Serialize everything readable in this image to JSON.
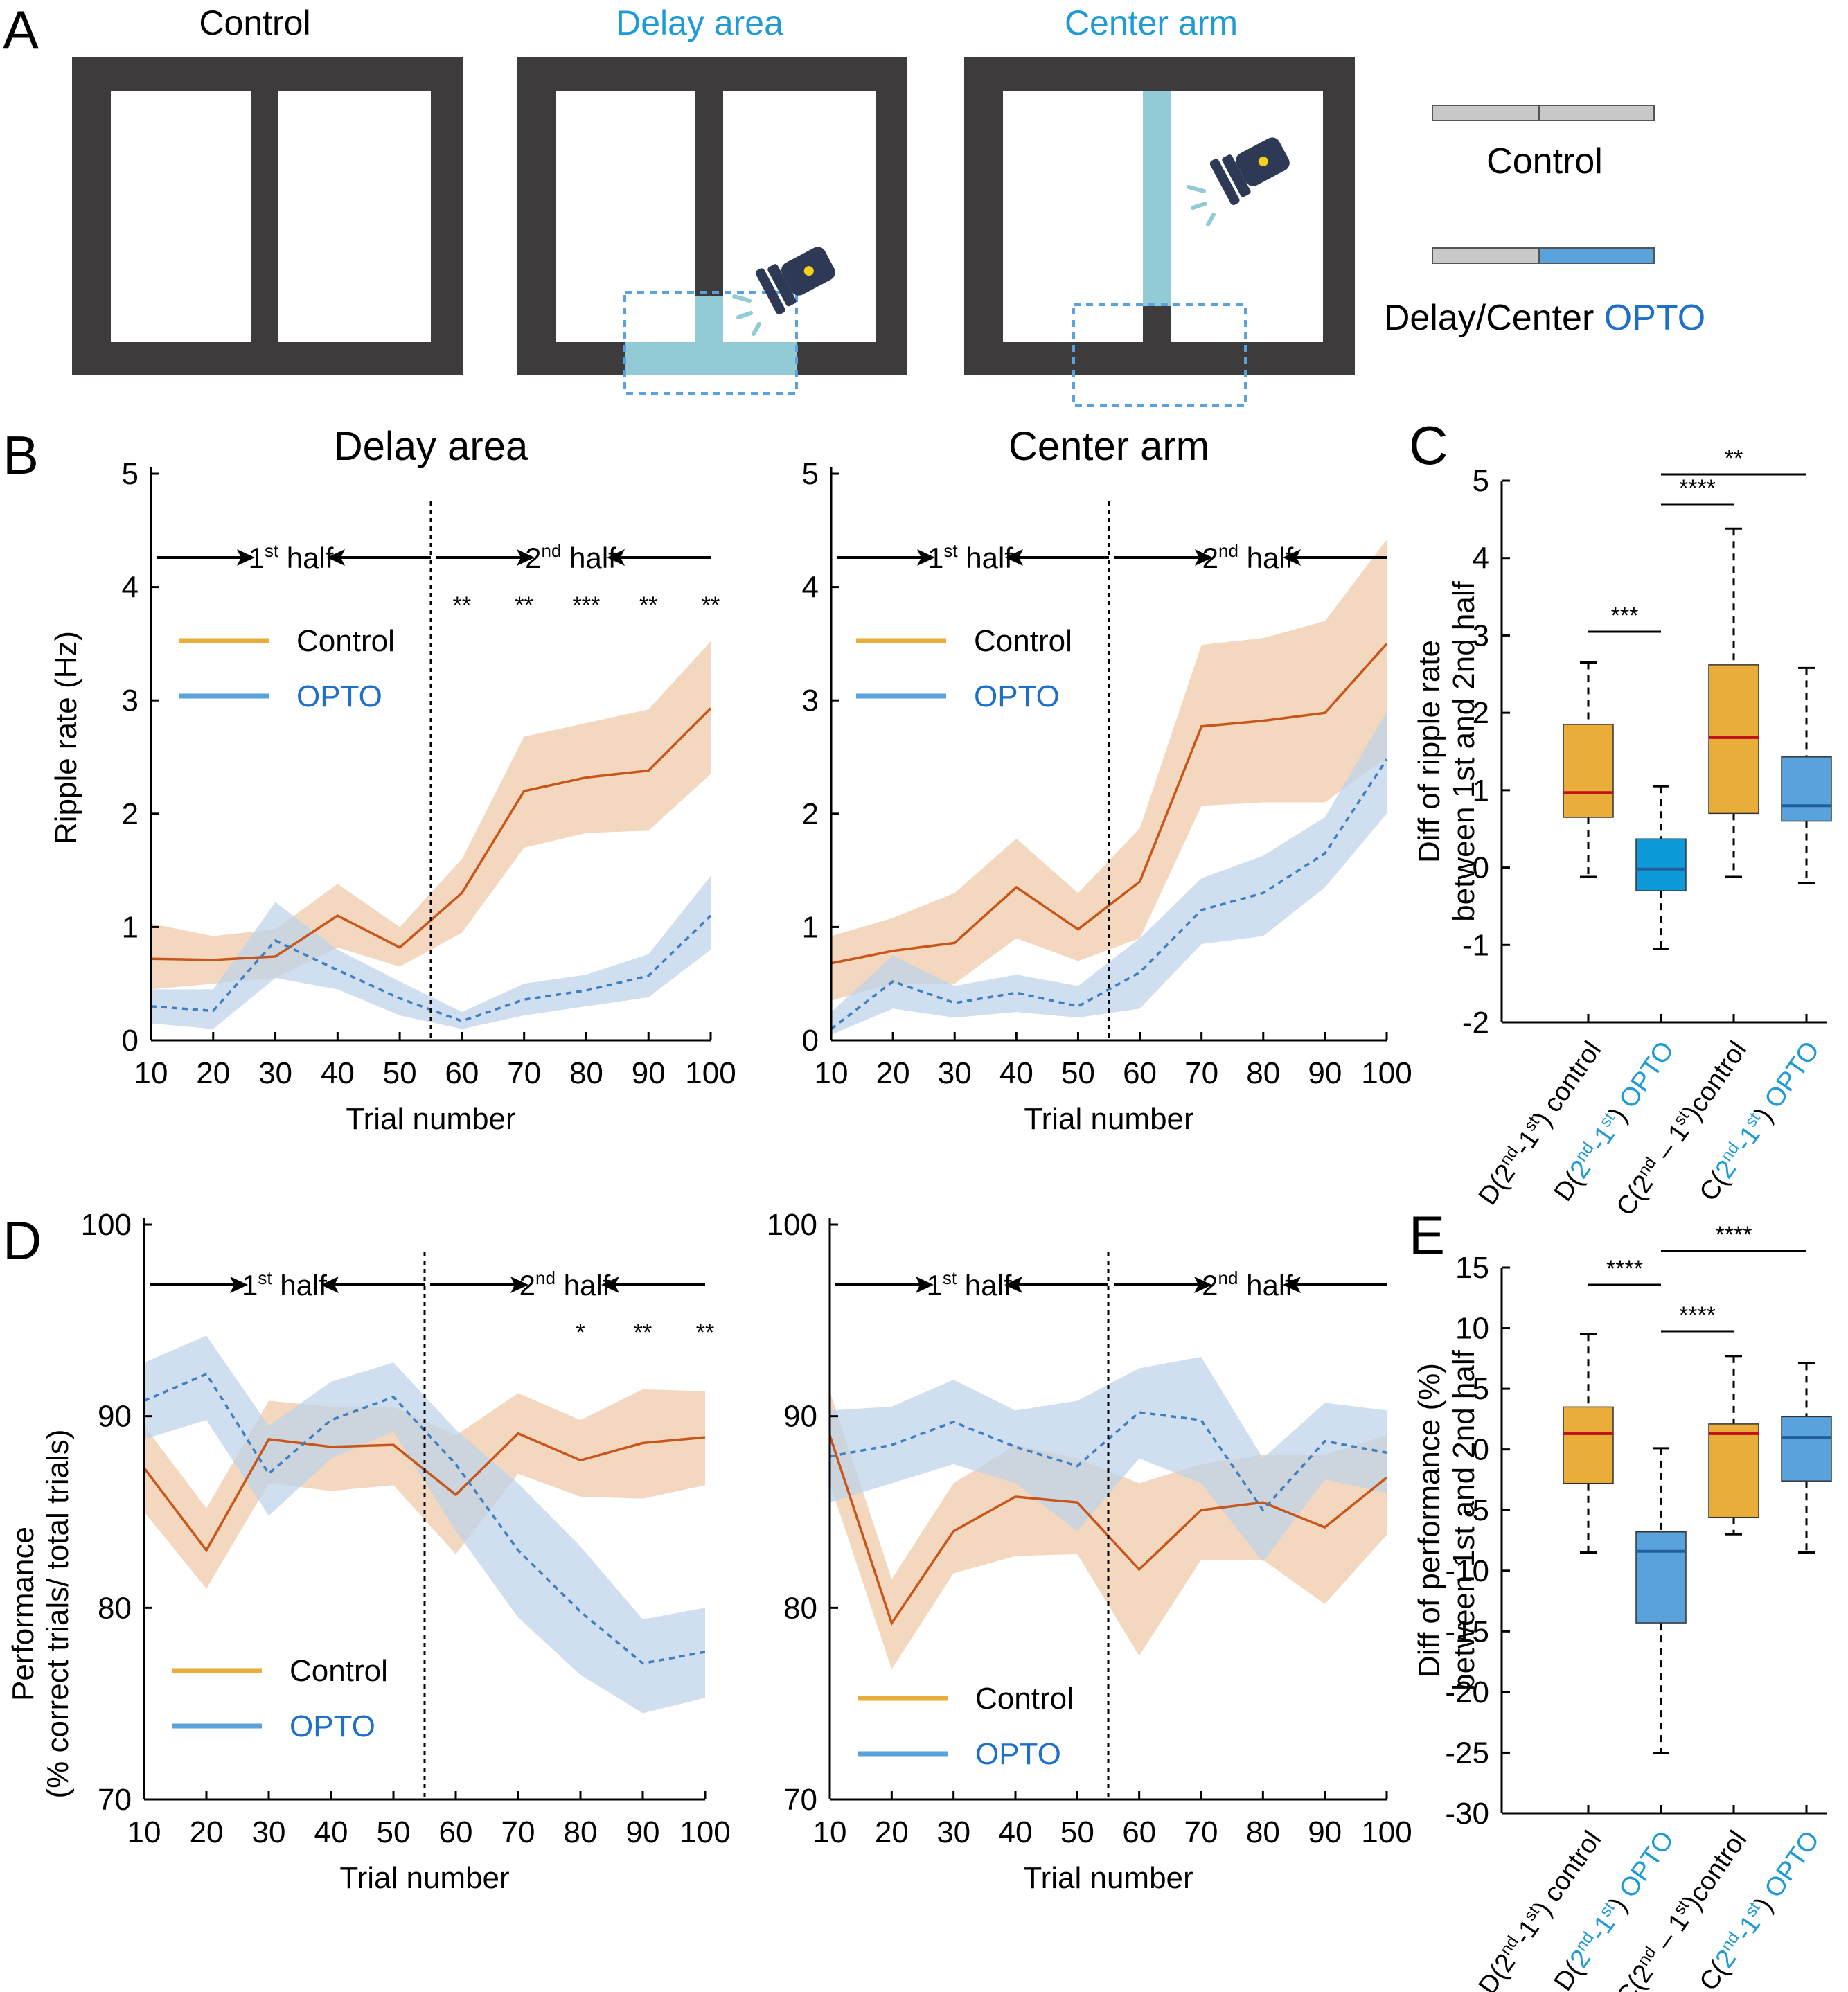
{
  "colors": {
    "control": "#c8561a",
    "control_band": "#efc9a6",
    "opto": "#3f7fc1",
    "opto_band": "#bcd3ea",
    "box_orange": "#e9ad3a",
    "box_blue_c": "#0e9ad8",
    "box_blue_e": "#5aa2dc",
    "median_red": "#c0111d",
    "text_blue": "#1e9ad6",
    "maze": "#3d3b3b",
    "light": "#92cad6"
  },
  "panelA": {
    "letter": "A",
    "titles": [
      "Control",
      "Delay area",
      "Center arm"
    ],
    "legend_control": "Control",
    "legend_opto_prefix": "Delay/Center ",
    "legend_opto_word": "OPTO"
  },
  "panelB": {
    "letter": "B",
    "ylabel": "Ripple rate  (Hz)",
    "xlabel": "Trial number",
    "first_half": "1",
    "first_sup": "st",
    "second_half": "2",
    "second_sup": "nd",
    "half_word": " half",
    "legend": [
      "Control",
      "OPTO"
    ],
    "stars": [
      "**",
      "**",
      "***",
      "**",
      "**"
    ]
  },
  "panelC": {
    "letter": "C",
    "ylabel_line1": "Diff of ripple rate",
    "ylabel_line2": "between 1st and 2nd half",
    "brackets": [
      "***",
      "****",
      "**"
    ]
  },
  "panelD": {
    "letter": "D",
    "ylabel_line1": "Performance",
    "ylabel_line2": "(% correct trials/ total trials)",
    "xlabel": "Trial number",
    "legend": [
      "Control",
      "OPTO"
    ],
    "stars": [
      "*",
      "**",
      "**"
    ]
  },
  "panelE": {
    "letter": "E",
    "ylabel_line1": "Diff of performance (%)",
    "ylabel_line2": "between 1st and 2nd half",
    "brackets": [
      "****",
      "****",
      "****"
    ]
  },
  "box_labels": [
    {
      "a": "D(2",
      "s1": "nd",
      "b": "-1",
      "s2": "st",
      "c": ") control",
      "blue": false
    },
    {
      "a": "D(",
      "s1": "nd",
      "b": "-1",
      "s2": "st",
      "c": ") ",
      "blue": true,
      "word": "OPTO",
      "num1": "2",
      "num2": "1"
    },
    {
      "a": "C(2",
      "s1": "nd",
      "b": " – 1",
      "s2": "st",
      "c": ")control",
      "blue": false
    },
    {
      "a": "C(",
      "s1": "nd",
      "b": "-1",
      "s2": "st",
      "c": ") ",
      "blue": true,
      "word": "OPTO",
      "num1": "2",
      "num2": "1"
    }
  ],
  "chart_data": [
    {
      "id": "B-delay",
      "type": "line",
      "title": "Delay area",
      "xlabel": "Trial number",
      "ylabel": "Ripple rate  (Hz)",
      "x": [
        10,
        20,
        30,
        40,
        50,
        60,
        70,
        80,
        90,
        100
      ],
      "xlim": [
        10,
        100
      ],
      "ylim": [
        0,
        5
      ],
      "yticks": [
        0,
        1,
        2,
        3,
        4,
        5
      ],
      "xticks": [
        10,
        20,
        30,
        40,
        50,
        60,
        70,
        80,
        90,
        100
      ],
      "divider_x": 55,
      "series": [
        {
          "name": "Control",
          "values": [
            0.72,
            0.71,
            0.74,
            1.1,
            0.82,
            1.3,
            2.2,
            2.32,
            2.38,
            2.93
          ],
          "lower": [
            0.45,
            0.5,
            0.55,
            0.82,
            0.65,
            0.95,
            1.7,
            1.83,
            1.85,
            2.35
          ],
          "upper": [
            1.03,
            0.92,
            0.98,
            1.38,
            1.0,
            1.6,
            2.68,
            2.8,
            2.92,
            3.52
          ]
        },
        {
          "name": "OPTO",
          "values": [
            0.3,
            0.26,
            0.88,
            0.62,
            0.37,
            0.17,
            0.36,
            0.44,
            0.57,
            1.1
          ],
          "lower": [
            0.15,
            0.1,
            0.55,
            0.45,
            0.22,
            0.1,
            0.22,
            0.3,
            0.38,
            0.8
          ],
          "upper": [
            0.45,
            0.45,
            1.22,
            0.8,
            0.52,
            0.25,
            0.5,
            0.58,
            0.76,
            1.45
          ]
        }
      ],
      "significance_x": [
        60,
        70,
        80,
        90,
        100
      ]
    },
    {
      "id": "B-center",
      "type": "line",
      "title": "Center arm",
      "xlabel": "Trial number",
      "x": [
        10,
        20,
        30,
        40,
        50,
        60,
        70,
        80,
        90,
        100
      ],
      "xlim": [
        10,
        100
      ],
      "ylim": [
        0,
        5
      ],
      "yticks": [
        0,
        1,
        2,
        3,
        4,
        5
      ],
      "xticks": [
        10,
        20,
        30,
        40,
        50,
        60,
        70,
        80,
        90,
        100
      ],
      "divider_x": 55,
      "series": [
        {
          "name": "Control",
          "values": [
            0.68,
            0.79,
            0.86,
            1.35,
            0.98,
            1.4,
            2.77,
            2.82,
            2.89,
            3.5
          ],
          "lower": [
            0.35,
            0.5,
            0.5,
            0.9,
            0.7,
            0.9,
            2.07,
            2.1,
            2.1,
            2.5
          ],
          "upper": [
            0.92,
            1.08,
            1.3,
            1.78,
            1.3,
            1.87,
            3.49,
            3.55,
            3.7,
            4.42
          ]
        },
        {
          "name": "OPTO",
          "values": [
            0.1,
            0.52,
            0.33,
            0.42,
            0.3,
            0.6,
            1.15,
            1.3,
            1.65,
            2.48
          ],
          "lower": [
            0.05,
            0.28,
            0.2,
            0.25,
            0.2,
            0.28,
            0.85,
            0.92,
            1.35,
            2.0
          ],
          "upper": [
            0.25,
            0.75,
            0.48,
            0.58,
            0.48,
            0.9,
            1.43,
            1.63,
            1.97,
            2.9
          ]
        }
      ]
    },
    {
      "id": "C",
      "type": "box",
      "ylabel": "Diff of ripple rate between 1st and 2nd half",
      "categories": [
        "D(2nd-1st) control",
        "D(2nd-1st) OPTO",
        "C(2nd – 1st)control",
        "C(2nd-1st) OPTO"
      ],
      "ylim": [
        -2,
        5
      ],
      "yticks": [
        -2,
        -1,
        0,
        1,
        2,
        3,
        4,
        5
      ],
      "boxes": [
        {
          "whisker_low": -0.12,
          "q1": 0.65,
          "median": 0.97,
          "q3": 1.85,
          "whisker_high": 2.65
        },
        {
          "whisker_low": -1.05,
          "q1": -0.3,
          "median": -0.02,
          "q3": 0.37,
          "whisker_high": 1.05
        },
        {
          "whisker_low": -0.12,
          "q1": 0.7,
          "median": 1.68,
          "q3": 2.62,
          "whisker_high": 4.38
        },
        {
          "whisker_low": -0.2,
          "q1": 0.6,
          "median": 0.8,
          "q3": 1.43,
          "whisker_high": 2.58
        }
      ],
      "significance": [
        {
          "pair": [
            1,
            2
          ],
          "label": "***"
        },
        {
          "pair": [
            2,
            3
          ],
          "label": "****"
        },
        {
          "pair": [
            2,
            4
          ],
          "label": "**"
        }
      ]
    },
    {
      "id": "D-delay",
      "type": "line",
      "ylabel": "Performance (% correct trials/ total trials)",
      "xlabel": "Trial number",
      "x": [
        10,
        20,
        30,
        40,
        50,
        60,
        70,
        80,
        90,
        100
      ],
      "xlim": [
        10,
        100
      ],
      "ylim": [
        70,
        100
      ],
      "yticks": [
        70,
        80,
        90,
        100
      ],
      "xticks": [
        10,
        20,
        30,
        40,
        50,
        60,
        70,
        80,
        90,
        100
      ],
      "divider_x": 55,
      "series": [
        {
          "name": "Control",
          "values": [
            87.3,
            83.0,
            88.8,
            88.4,
            88.5,
            85.9,
            89.1,
            87.7,
            88.6,
            88.9
          ],
          "lower": [
            85.0,
            81.0,
            86.5,
            86.1,
            86.4,
            82.8,
            87.0,
            85.8,
            85.7,
            86.4
          ],
          "upper": [
            89.5,
            85.2,
            90.8,
            90.5,
            90.5,
            89.0,
            91.2,
            89.8,
            91.4,
            91.3
          ]
        },
        {
          "name": "OPTO",
          "values": [
            90.8,
            92.2,
            87.0,
            89.8,
            91.0,
            87.5,
            83.0,
            79.8,
            77.1,
            77.7
          ],
          "lower": [
            88.8,
            89.8,
            84.8,
            87.8,
            89.2,
            84.0,
            79.5,
            76.5,
            74.5,
            75.3
          ],
          "upper": [
            92.8,
            94.2,
            89.5,
            91.8,
            92.8,
            89.3,
            86.5,
            83.2,
            79.4,
            80.0
          ]
        }
      ],
      "significance_x": [
        80,
        90,
        100
      ]
    },
    {
      "id": "D-center",
      "type": "line",
      "xlabel": "Trial number",
      "x": [
        10,
        20,
        30,
        40,
        50,
        60,
        70,
        80,
        90,
        100
      ],
      "xlim": [
        10,
        100
      ],
      "ylim": [
        70,
        100
      ],
      "yticks": [
        70,
        80,
        90,
        100
      ],
      "xticks": [
        10,
        20,
        30,
        40,
        50,
        60,
        70,
        80,
        90,
        100
      ],
      "divider_x": 55,
      "series": [
        {
          "name": "Control",
          "values": [
            89.0,
            79.2,
            84.0,
            85.8,
            85.5,
            82.0,
            85.1,
            85.5,
            84.2,
            86.8
          ],
          "lower": [
            86.5,
            76.8,
            81.8,
            82.7,
            82.8,
            77.5,
            82.5,
            82.5,
            80.2,
            83.8
          ],
          "upper": [
            91.3,
            81.5,
            86.5,
            88.5,
            87.8,
            86.5,
            87.5,
            88.0,
            88.0,
            89.0
          ]
        },
        {
          "name": "OPTO",
          "values": [
            87.9,
            88.5,
            89.7,
            88.4,
            87.4,
            90.2,
            89.8,
            85.1,
            88.7,
            88.1
          ],
          "lower": [
            85.5,
            86.5,
            87.5,
            86.5,
            84.0,
            87.8,
            86.5,
            82.4,
            86.7,
            86.0
          ],
          "upper": [
            90.3,
            90.5,
            91.9,
            90.3,
            90.8,
            92.5,
            93.1,
            87.8,
            90.7,
            90.3
          ]
        }
      ]
    },
    {
      "id": "E",
      "type": "box",
      "ylabel": "Diff of performance (%) between 1st and 2nd half",
      "categories": [
        "D(2nd-1st) control",
        "D(2nd-1st) OPTO",
        "C(2nd – 1st)control",
        "C(2nd-1st) OPTO"
      ],
      "ylim": [
        -30,
        15
      ],
      "yticks": [
        -30,
        -25,
        -20,
        -15,
        -10,
        -5,
        0,
        5,
        10,
        15
      ],
      "boxes": [
        {
          "whisker_low": -8.5,
          "q1": -2.8,
          "median": 1.3,
          "q3": 3.5,
          "whisker_high": 9.5
        },
        {
          "whisker_low": -25.0,
          "q1": -14.3,
          "median": -8.4,
          "q3": -6.8,
          "whisker_high": 0.1
        },
        {
          "whisker_low": -7.0,
          "q1": -5.6,
          "median": 1.3,
          "q3": 2.1,
          "whisker_high": 7.7
        },
        {
          "whisker_low": -8.5,
          "q1": -2.6,
          "median": 1.0,
          "q3": 2.7,
          "whisker_high": 7.1
        }
      ],
      "significance": [
        {
          "pair": [
            1,
            2
          ],
          "label": "****"
        },
        {
          "pair": [
            2,
            3
          ],
          "label": "****"
        },
        {
          "pair": [
            2,
            4
          ],
          "label": "****"
        }
      ]
    }
  ]
}
